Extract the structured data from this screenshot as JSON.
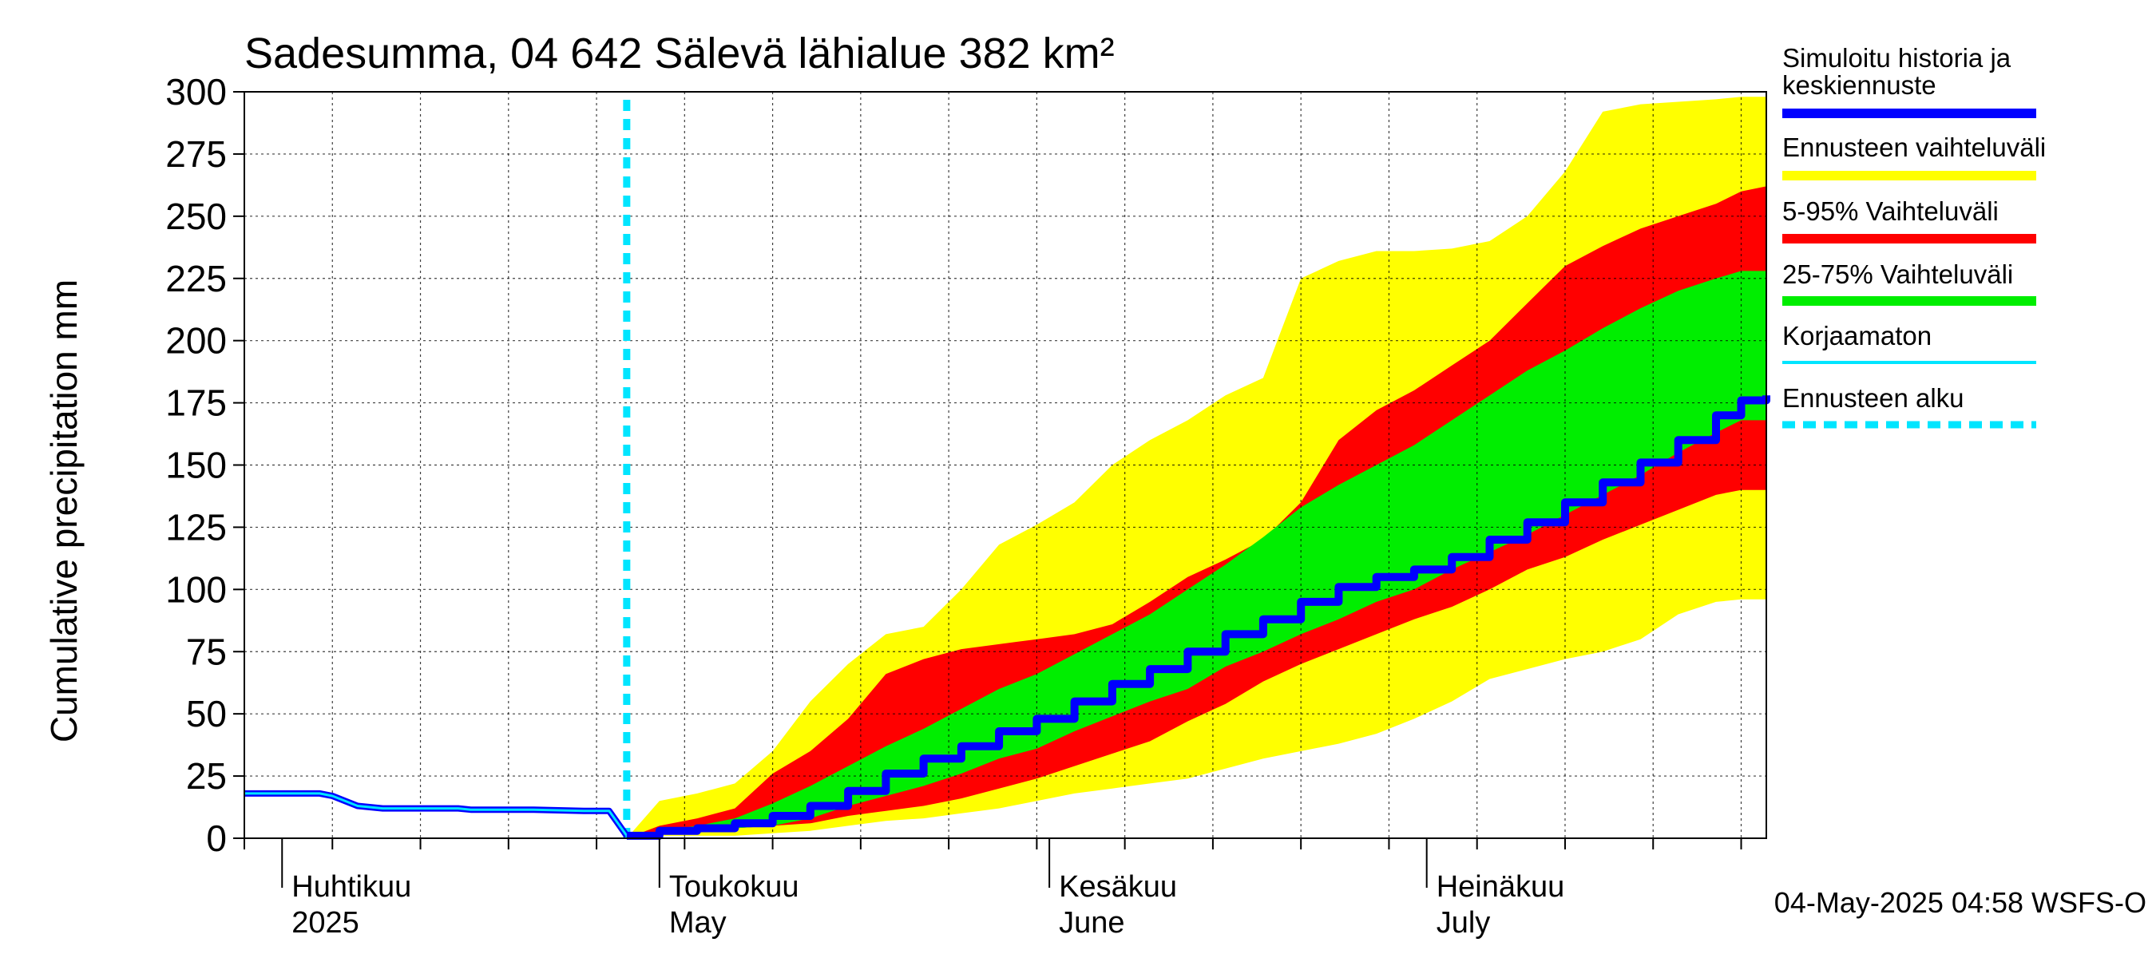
{
  "chart_data": {
    "type": "area",
    "title": "Sadesumma, 04 642 Sälevä lähialue 382 km²",
    "ylabel": "Cumulative precipitation   mm",
    "xlabel": "",
    "ylim": [
      0,
      300
    ],
    "y_ticks": [
      0,
      25,
      50,
      75,
      100,
      125,
      150,
      175,
      200,
      225,
      250,
      275,
      300
    ],
    "x_axis": {
      "start_day": 0,
      "end_day": 121,
      "start_date": "2025-03-29",
      "week_ticks": [
        0,
        7,
        14,
        21,
        28,
        35,
        42,
        49,
        56,
        63,
        70,
        77,
        84,
        91,
        98,
        105,
        112,
        119
      ],
      "month_boundaries": [
        3,
        33,
        64,
        94
      ],
      "month_labels": [
        {
          "day": 3,
          "fi": "Huhtikuu",
          "en": "2025"
        },
        {
          "day": 33,
          "fi": "Toukokuu",
          "en": "May"
        },
        {
          "day": 64,
          "fi": "Kesäkuu",
          "en": "June"
        },
        {
          "day": 94,
          "fi": "Heinäkuu",
          "en": "July"
        }
      ]
    },
    "forecast_start_day": 30.4,
    "history": {
      "name": "Korjaamaton / Simuloitu historia",
      "x": [
        0,
        6,
        7,
        9,
        11,
        17,
        18,
        20,
        23,
        27,
        29,
        30.4
      ],
      "y": [
        18,
        18,
        17,
        13,
        12,
        12,
        11.5,
        11.5,
        11.5,
        11,
        11,
        1
      ]
    },
    "forecast_days": [
      30.4,
      33,
      36,
      39,
      42,
      45,
      48,
      51,
      54,
      57,
      60,
      63,
      66,
      69,
      72,
      75,
      78,
      81,
      84,
      87,
      90,
      93,
      96,
      99,
      102,
      105,
      108,
      111,
      114,
      117,
      119,
      121
    ],
    "bands": {
      "range": {
        "name": "Ennusteen vaihteluväli",
        "color": "#ffff00",
        "lower": [
          0,
          1,
          1,
          1,
          2,
          3,
          5,
          7,
          8,
          10,
          12,
          15,
          18,
          20,
          22,
          24,
          28,
          32,
          35,
          38,
          42,
          48,
          55,
          64,
          68,
          72,
          75,
          80,
          90,
          95,
          96,
          96
        ],
        "upper": [
          0,
          15,
          18,
          22,
          35,
          55,
          70,
          82,
          85,
          100,
          118,
          126,
          135,
          150,
          160,
          168,
          178,
          185,
          225,
          232,
          236,
          236,
          237,
          240,
          250,
          268,
          292,
          295,
          296,
          297,
          298,
          298
        ]
      },
      "p5_95": {
        "name": "5-95% Vaihteluväli",
        "color": "#ff0000",
        "lower": [
          0,
          2,
          3,
          4,
          5,
          6,
          9,
          11,
          13,
          16,
          20,
          24,
          29,
          34,
          39,
          47,
          54,
          63,
          70,
          76,
          82,
          88,
          93,
          100,
          108,
          113,
          120,
          126,
          132,
          138,
          140,
          140
        ],
        "upper": [
          0,
          5,
          8,
          12,
          26,
          35,
          48,
          66,
          72,
          76,
          78,
          80,
          82,
          86,
          95,
          105,
          112,
          120,
          135,
          160,
          172,
          180,
          190,
          200,
          215,
          230,
          238,
          245,
          250,
          255,
          260,
          262
        ]
      },
      "p25_75": {
        "name": "25-75% Vaihteluväli",
        "color": "#00ee00",
        "lower": [
          0,
          2,
          3,
          4,
          5,
          8,
          13,
          17,
          21,
          26,
          32,
          36,
          43,
          49,
          55,
          60,
          69,
          75,
          82,
          88,
          95,
          100,
          108,
          115,
          122,
          130,
          138,
          146,
          155,
          163,
          168,
          168
        ],
        "upper": [
          0,
          3,
          5,
          8,
          14,
          21,
          29,
          37,
          44,
          52,
          60,
          66,
          74,
          82,
          90,
          100,
          110,
          121,
          133,
          142,
          150,
          158,
          168,
          178,
          188,
          196,
          205,
          213,
          220,
          225,
          228,
          228
        ]
      }
    },
    "median": {
      "name": "Simuloitu historia ja keskiennuste",
      "color": "#0000ff",
      "values": [
        1,
        3,
        4,
        6,
        9,
        13,
        19,
        26,
        32,
        37,
        43,
        48,
        55,
        62,
        68,
        75,
        82,
        88,
        95,
        101,
        105,
        108,
        113,
        120,
        127,
        135,
        143,
        151,
        160,
        170,
        176,
        178
      ]
    },
    "legend": [
      {
        "label": "Simuloitu historia ja keskiennuste",
        "line1": "Simuloitu historia ja",
        "line2": "keskiennuste",
        "color": "#0000ff",
        "style": "thick"
      },
      {
        "label": "Ennusteen vaihteluväli",
        "color": "#ffff00",
        "style": "thick"
      },
      {
        "label": "5-95% Vaihteluväli",
        "color": "#ff0000",
        "style": "thick"
      },
      {
        "label": "25-75% Vaihteluväli",
        "color": "#00ee00",
        "style": "thick"
      },
      {
        "label": "Korjaamaton",
        "color": "#00e5ff",
        "style": "thin"
      },
      {
        "label": "Ennusteen alku",
        "color": "#00e5ff",
        "style": "dashed"
      }
    ],
    "footer": "04-May-2025 04:58 WSFS-O"
  }
}
